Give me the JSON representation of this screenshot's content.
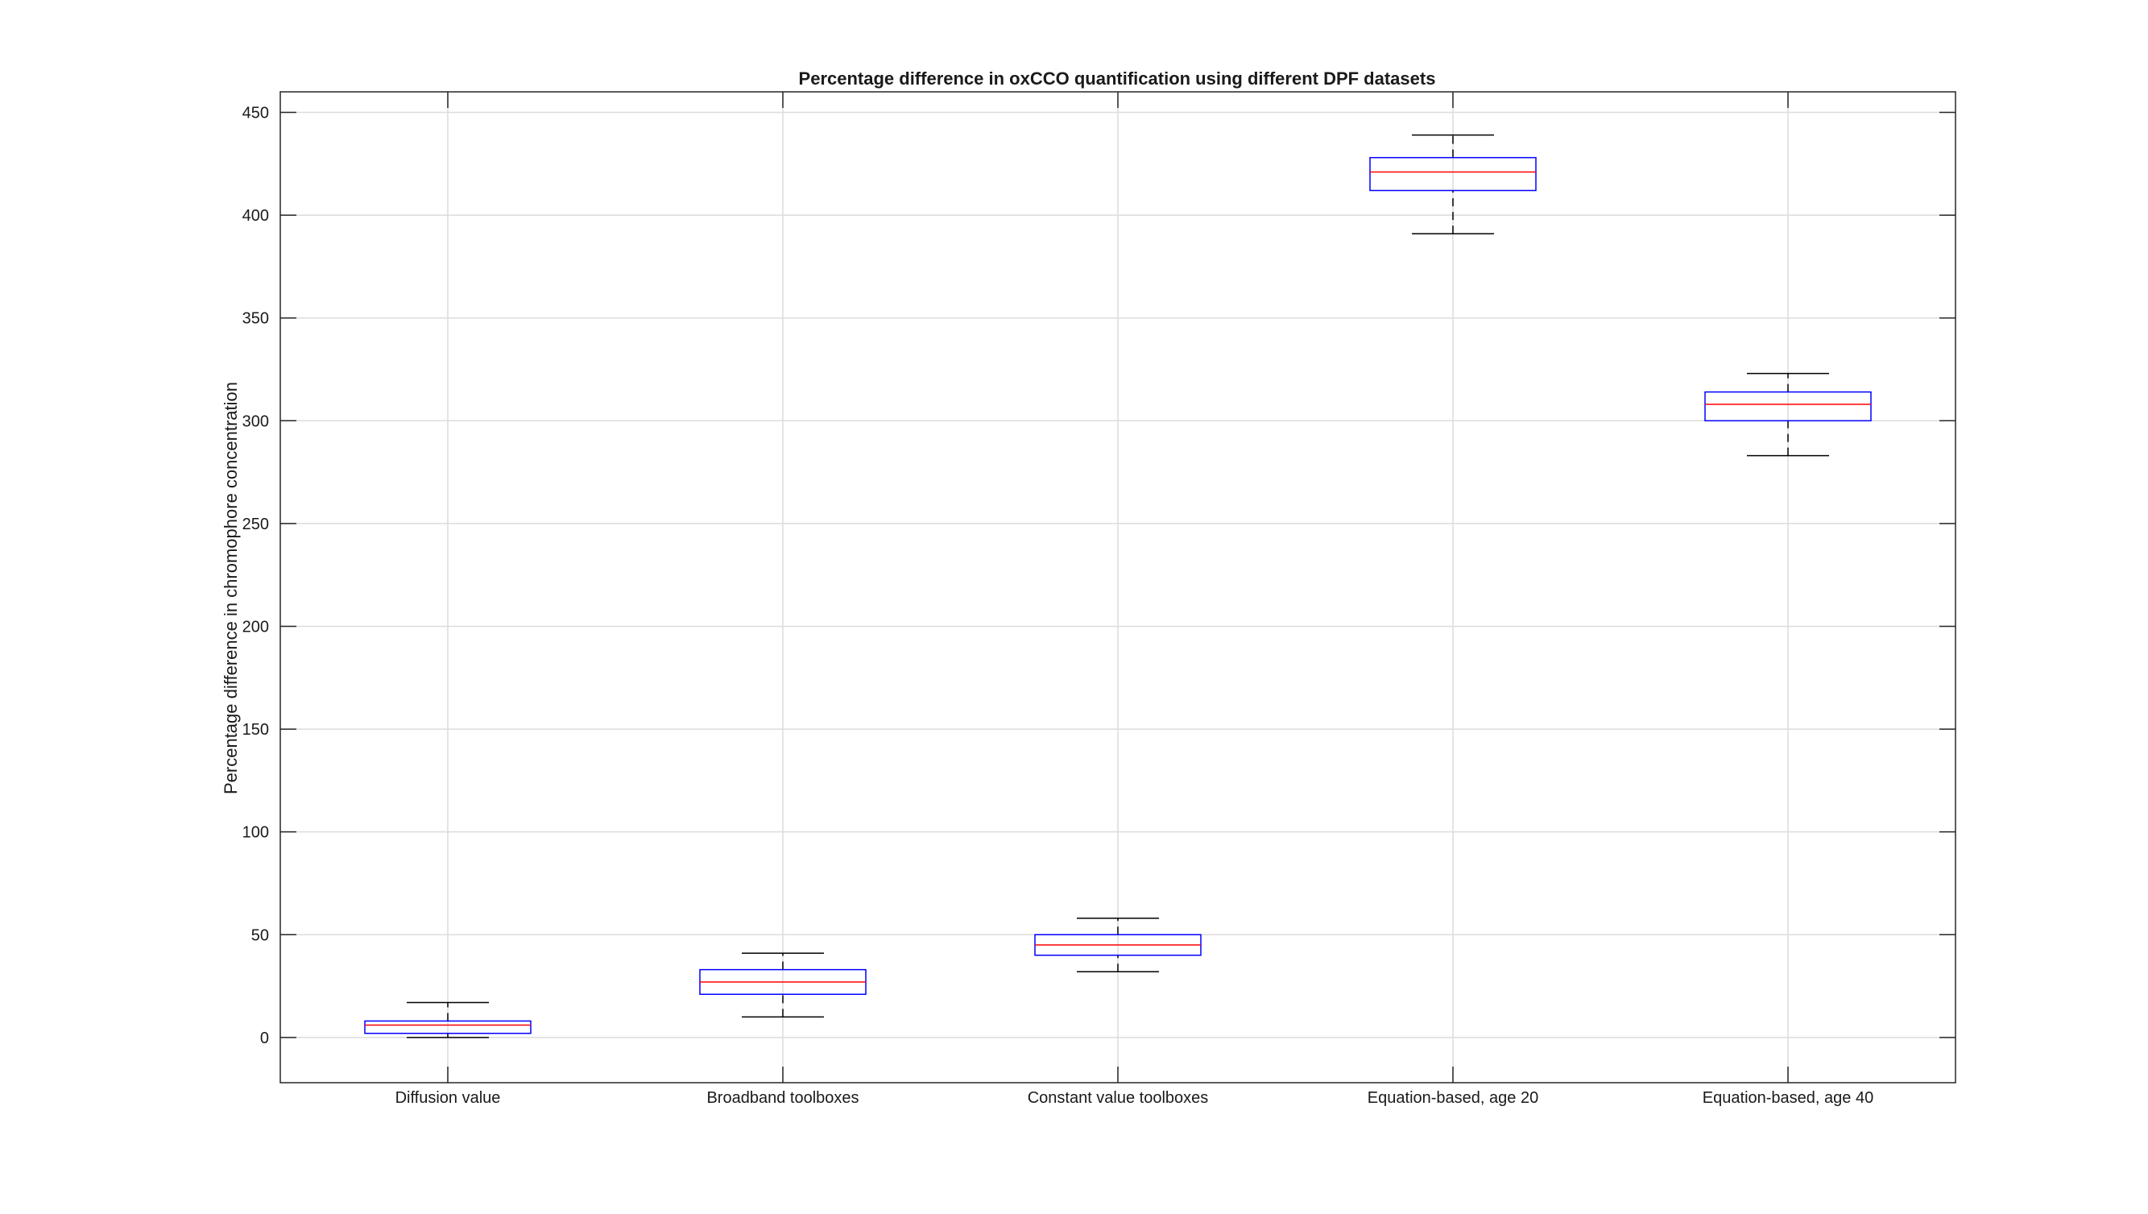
{
  "chart_data": {
    "type": "box",
    "title": "Percentage difference in oxCCO quantification using different DPF datasets",
    "xlabel": "",
    "ylabel": "Percentage difference in chromophore concentration",
    "categories": [
      "Diffusion value",
      "Broadband toolboxes",
      "Constant value toolboxes",
      "Equation-based, age 20",
      "Equation-based, age 40"
    ],
    "ylim": [
      -22,
      460
    ],
    "yticks": [
      0,
      50,
      100,
      150,
      200,
      250,
      300,
      350,
      400,
      450
    ],
    "grid": true,
    "boxes": [
      {
        "whisker_low": 0,
        "q1": 2,
        "median": 6,
        "q3": 8,
        "whisker_high": 17
      },
      {
        "whisker_low": 10,
        "q1": 21,
        "median": 27,
        "q3": 33,
        "whisker_high": 41
      },
      {
        "whisker_low": 32,
        "q1": 40,
        "median": 45,
        "q3": 50,
        "whisker_high": 58
      },
      {
        "whisker_low": 391,
        "q1": 412,
        "median": 421,
        "q3": 428,
        "whisker_high": 439
      },
      {
        "whisker_low": 283,
        "q1": 300,
        "median": 308,
        "q3": 314,
        "whisker_high": 323
      }
    ],
    "colors": {
      "box": "#0000ff",
      "median": "#ff0000",
      "whisker": "#000000",
      "grid": "#dcdcdc",
      "axis": "#262626"
    }
  }
}
